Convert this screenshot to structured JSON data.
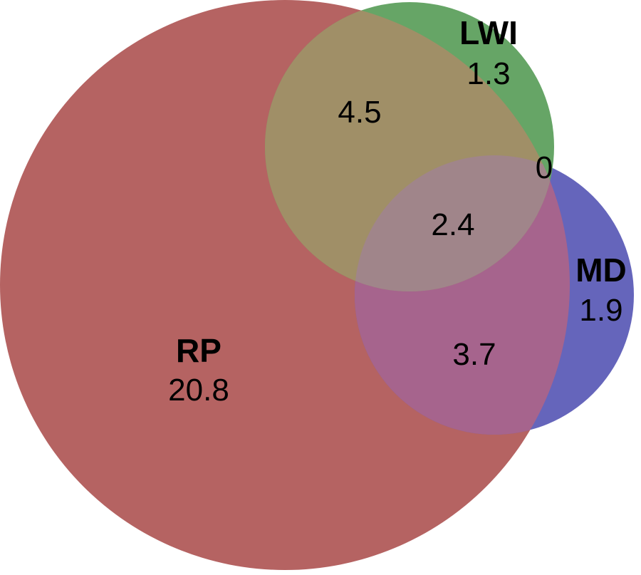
{
  "sets": {
    "rp": {
      "name": "RP",
      "value": "20.8",
      "color": "#b56362"
    },
    "lwi": {
      "name": "LWI",
      "value": "1.3",
      "color": "#66a566"
    },
    "md": {
      "name": "MD",
      "value": "1.9",
      "color": "#6565bb"
    }
  },
  "regions": {
    "rp_lwi": "4.5",
    "lwi_md": "0",
    "rp_lwi_md": "2.4",
    "rp_md": "3.7"
  },
  "colors": {
    "rp_lwi": "#a08f67",
    "rp_lwi_md": "#a0858a",
    "rp_md": "#a6648d"
  }
}
